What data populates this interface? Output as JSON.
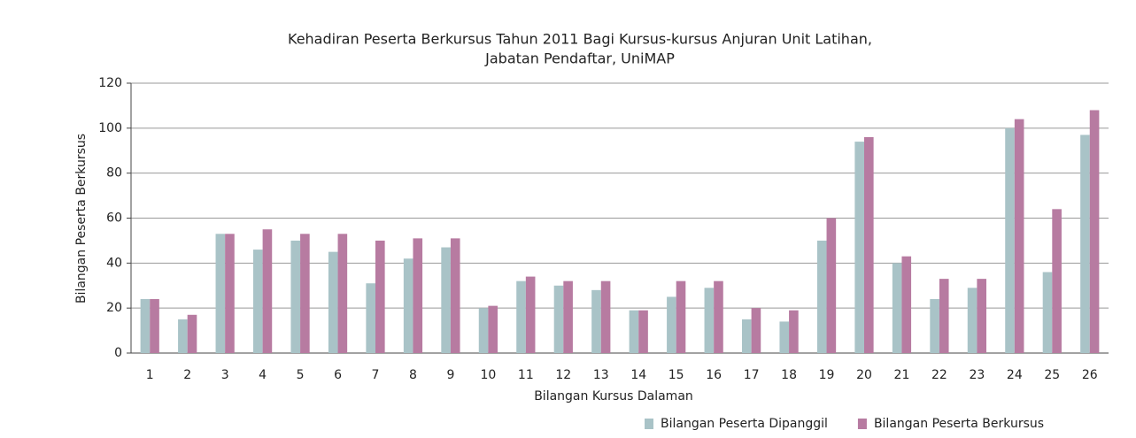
{
  "chart_data": {
    "type": "bar",
    "title": [
      "Kehadiran Peserta Berkursus Tahun 2011 Bagi Kursus-kursus Anjuran Unit Latihan,",
      "Jabatan Pendaftar, UniMAP"
    ],
    "xlabel": "Bilangan Kursus Dalaman",
    "ylabel": "Bilangan Peserta Berkursus",
    "categories": [
      "1",
      "2",
      "3",
      "4",
      "5",
      "6",
      "7",
      "8",
      "9",
      "10",
      "11",
      "12",
      "13",
      "14",
      "15",
      "16",
      "17",
      "18",
      "19",
      "20",
      "21",
      "22",
      "23",
      "24",
      "25",
      "26"
    ],
    "series": [
      {
        "name": "Bilangan Peserta Dipanggil",
        "color": "#a9c3c7",
        "values": [
          24,
          15,
          53,
          46,
          50,
          45,
          31,
          42,
          47,
          20,
          32,
          30,
          28,
          19,
          25,
          29,
          15,
          14,
          50,
          94,
          40,
          24,
          29,
          100,
          36,
          97
        ]
      },
      {
        "name": "Bilangan Peserta Berkursus",
        "color": "#b77ba1",
        "values": [
          24,
          17,
          53,
          55,
          53,
          53,
          50,
          51,
          51,
          21,
          34,
          32,
          32,
          19,
          32,
          32,
          20,
          19,
          60,
          96,
          43,
          33,
          33,
          104,
          64,
          108
        ]
      }
    ],
    "ylim": [
      0,
      120
    ],
    "yticks": [
      0,
      20,
      40,
      60,
      80,
      100,
      120
    ],
    "grid": true,
    "legend": "bottom-right"
  }
}
